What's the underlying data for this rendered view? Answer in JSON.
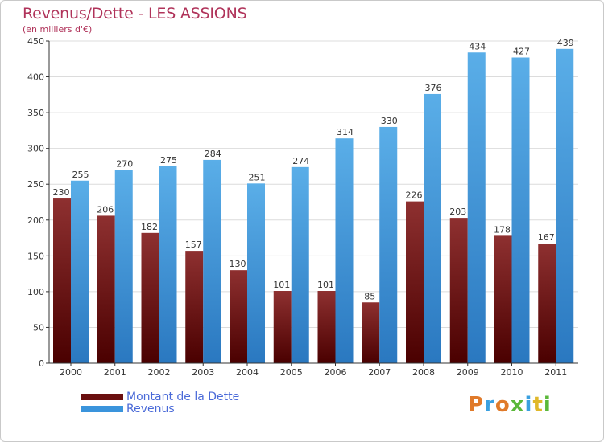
{
  "title": "Revenus/Dette - LES ASSIONS",
  "subtitle": "(en milliers d'€)",
  "colors": {
    "dette": "#7a1c1c",
    "revenus": "#3d9be0",
    "grid": "#dcdcdc",
    "axis": "#333333",
    "title": "#b0335a"
  },
  "legend": [
    {
      "label": "Montant de la Dette",
      "color": "#6a0f0f"
    },
    {
      "label": "Revenus",
      "color": "#3a94dc"
    }
  ],
  "logo": {
    "text": "Proxiti",
    "colors": [
      "#e07a2a",
      "#3aa0e0",
      "#e07a2a",
      "#5ab83a",
      "#3aa0e0",
      "#e0b82a",
      "#5ab83a"
    ]
  },
  "chart_data": {
    "type": "bar",
    "categories": [
      "2000",
      "2001",
      "2002",
      "2003",
      "2004",
      "2005",
      "2006",
      "2007",
      "2008",
      "2009",
      "2010",
      "2011"
    ],
    "series": [
      {
        "name": "Montant de la Dette",
        "values": [
          230,
          206,
          182,
          157,
          130,
          101,
          101,
          85,
          226,
          203,
          178,
          167
        ]
      },
      {
        "name": "Revenus",
        "values": [
          255,
          270,
          275,
          284,
          251,
          274,
          314,
          330,
          376,
          434,
          427,
          439
        ]
      }
    ],
    "ylim": [
      0,
      450
    ],
    "yticks": [
      0,
      50,
      100,
      150,
      200,
      250,
      300,
      350,
      400,
      450
    ],
    "grid": true,
    "legend_position": "bottom-left"
  }
}
